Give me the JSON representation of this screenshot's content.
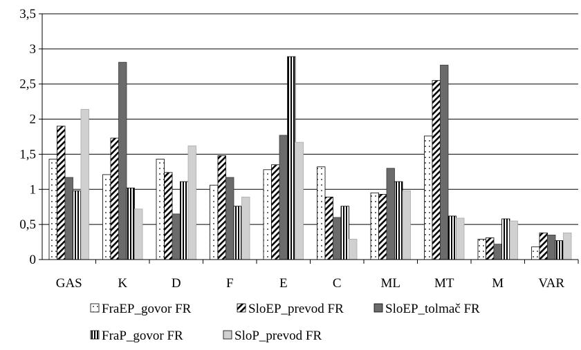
{
  "chart_data": {
    "type": "bar",
    "categories": [
      "GAS",
      "K",
      "D",
      "F",
      "E",
      "C",
      "ML",
      "MT",
      "M",
      "VAR"
    ],
    "series": [
      {
        "name": "FraEP_govor FR",
        "values": [
          1.43,
          1.21,
          1.43,
          1.06,
          1.28,
          1.32,
          0.95,
          1.76,
          0.29,
          0.18
        ]
      },
      {
        "name": "SloEP_prevod FR",
        "values": [
          1.9,
          1.73,
          1.24,
          1.48,
          1.35,
          0.89,
          0.93,
          2.55,
          0.31,
          0.38
        ]
      },
      {
        "name": "SloEP_tolmač FR",
        "values": [
          1.17,
          2.81,
          0.65,
          1.17,
          1.77,
          0.6,
          1.3,
          2.77,
          0.22,
          0.35
        ]
      },
      {
        "name": "FraP_govor FR",
        "values": [
          0.98,
          1.02,
          1.11,
          0.76,
          2.89,
          0.76,
          1.11,
          0.62,
          0.58,
          0.27
        ]
      },
      {
        "name": "SloP_prevod FR",
        "values": [
          2.14,
          0.72,
          1.62,
          0.89,
          1.67,
          0.29,
          0.98,
          0.59,
          0.55,
          0.38
        ]
      }
    ],
    "y_ticks": [
      "0",
      "0,5",
      "1",
      "1,5",
      "2",
      "2,5",
      "3",
      "3,5"
    ],
    "ylim": [
      0,
      3.5
    ],
    "grid": true,
    "legend_position": "bottom",
    "title": "",
    "xlabel": "",
    "ylabel": ""
  }
}
